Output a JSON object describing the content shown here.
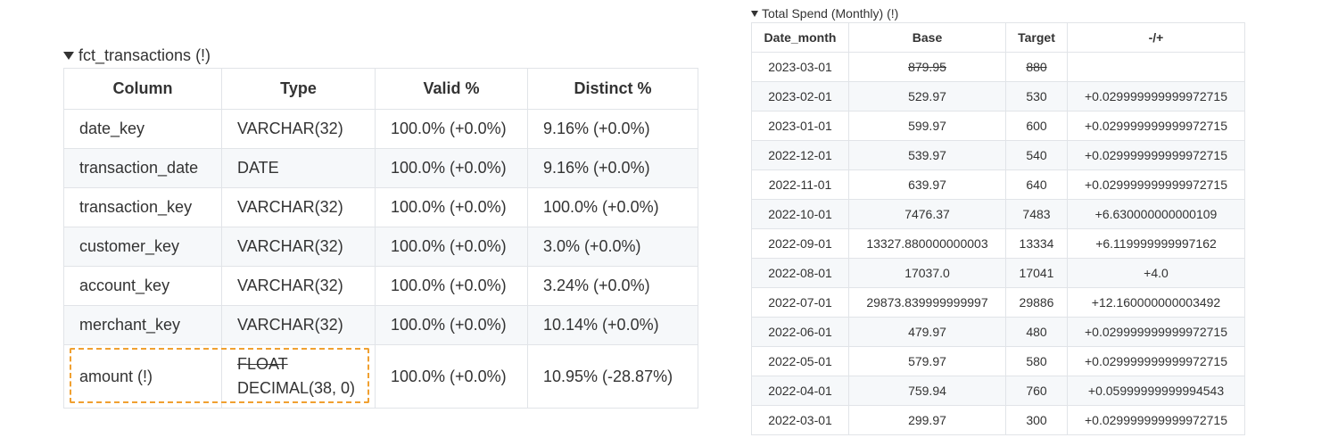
{
  "left_section": {
    "title": "fct_transactions (!)",
    "columns": [
      "Column",
      "Type",
      "Valid %",
      "Distinct %"
    ],
    "rows": [
      {
        "column": "date_key",
        "type": "VARCHAR(32)",
        "valid": "100.0% (+0.0%)",
        "distinct": "9.16% (+0.0%)"
      },
      {
        "column": "transaction_date",
        "type": "DATE",
        "valid": "100.0% (+0.0%)",
        "distinct": "9.16% (+0.0%)"
      },
      {
        "column": "transaction_key",
        "type": "VARCHAR(32)",
        "valid": "100.0% (+0.0%)",
        "distinct": "100.0% (+0.0%)"
      },
      {
        "column": "customer_key",
        "type": "VARCHAR(32)",
        "valid": "100.0% (+0.0%)",
        "distinct": "3.0% (+0.0%)"
      },
      {
        "column": "account_key",
        "type": "VARCHAR(32)",
        "valid": "100.0% (+0.0%)",
        "distinct": "3.24% (+0.0%)"
      },
      {
        "column": "merchant_key",
        "type": "VARCHAR(32)",
        "valid": "100.0% (+0.0%)",
        "distinct": "10.14% (+0.0%)"
      }
    ],
    "amount_row": {
      "column": "amount (!)",
      "type_old": "FLOAT",
      "type_new": "DECIMAL(38, 0)",
      "valid": "100.0% (+0.0%)",
      "distinct": "10.95% (-28.87%)"
    },
    "highlight_color": "#f0a030"
  },
  "right_section": {
    "title": "Total Spend (Monthly) (!)",
    "columns": [
      "Date_month",
      "Base",
      "Target",
      "-/+"
    ],
    "first_row": {
      "date": "2023-03-01",
      "base": "879.95",
      "target": "880",
      "diff": ""
    },
    "rows": [
      {
        "date": "2023-02-01",
        "base": "529.97",
        "target": "530",
        "diff": "+0.029999999999972715"
      },
      {
        "date": "2023-01-01",
        "base": "599.97",
        "target": "600",
        "diff": "+0.029999999999972715"
      },
      {
        "date": "2022-12-01",
        "base": "539.97",
        "target": "540",
        "diff": "+0.029999999999972715"
      },
      {
        "date": "2022-11-01",
        "base": "639.97",
        "target": "640",
        "diff": "+0.029999999999972715"
      },
      {
        "date": "2022-10-01",
        "base": "7476.37",
        "target": "7483",
        "diff": "+6.630000000000109"
      },
      {
        "date": "2022-09-01",
        "base": "13327.880000000003",
        "target": "13334",
        "diff": "+6.119999999997162"
      },
      {
        "date": "2022-08-01",
        "base": "17037.0",
        "target": "17041",
        "diff": "+4.0"
      },
      {
        "date": "2022-07-01",
        "base": "29873.839999999997",
        "target": "29886",
        "diff": "+12.160000000003492"
      },
      {
        "date": "2022-06-01",
        "base": "479.97",
        "target": "480",
        "diff": "+0.029999999999972715"
      },
      {
        "date": "2022-05-01",
        "base": "579.97",
        "target": "580",
        "diff": "+0.029999999999972715"
      },
      {
        "date": "2022-04-01",
        "base": "759.94",
        "target": "760",
        "diff": "+0.05999999999994543"
      },
      {
        "date": "2022-03-01",
        "base": "299.97",
        "target": "300",
        "diff": "+0.029999999999972715"
      }
    ]
  }
}
